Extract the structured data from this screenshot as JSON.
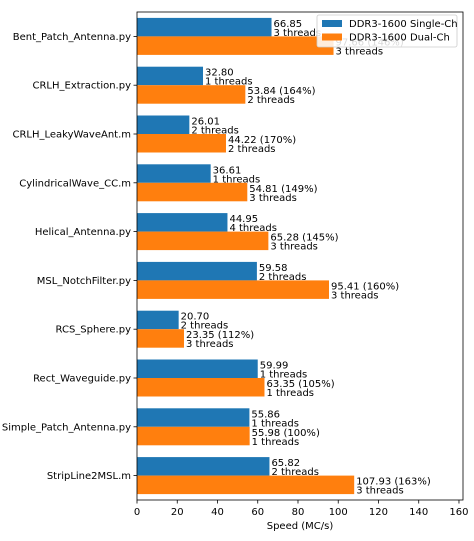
{
  "chart_data": {
    "type": "bar",
    "orientation": "horizontal",
    "title": "",
    "xlabel": "Speed (MC/s)",
    "ylabel": "",
    "xlim": [
      0,
      162
    ],
    "xticks": [
      0,
      20,
      40,
      60,
      80,
      100,
      120,
      140,
      160
    ],
    "grid": false,
    "legend_position": "top-right",
    "categories": [
      "Bent_Patch_Antenna.py",
      "CRLH_Extraction.py",
      "CRLH_LeakyWaveAnt.m",
      "CylindricalWave_CC.m",
      "Helical_Antenna.py",
      "MSL_NotchFilter.py",
      "RCS_Sphere.py",
      "Rect_Waveguide.py",
      "Simple_Patch_Antenna.py",
      "StripLine2MSL.m"
    ],
    "series": [
      {
        "name": "DDR3-1600 Single-Ch",
        "color": "#1f77b4",
        "values": [
          66.85,
          32.8,
          26.01,
          36.61,
          44.95,
          59.58,
          20.7,
          59.99,
          55.86,
          65.82
        ],
        "labels": [
          "66.85",
          "32.80",
          "26.01",
          "36.61",
          "44.95",
          "59.58",
          "20.70",
          "59.99",
          "55.86",
          "65.82"
        ],
        "threads": [
          "3 threads",
          "1 threads",
          "2 threads",
          "1 threads",
          "4 threads",
          "2 threads",
          "2 threads",
          "1 threads",
          "1 threads",
          "2 threads"
        ]
      },
      {
        "name": "DDR3-1600 Dual-Ch",
        "color": "#ff7f0e",
        "values": [
          97.66,
          53.84,
          44.22,
          54.81,
          65.28,
          95.41,
          23.35,
          63.35,
          55.98,
          107.93
        ],
        "labels": [
          "97.66 (146%)",
          "53.84 (164%)",
          "44.22 (170%)",
          "54.81 (149%)",
          "65.28 (145%)",
          "95.41 (160%)",
          "23.35 (112%)",
          "63.35 (105%)",
          "55.98 (100%)",
          "107.93 (163%)"
        ],
        "threads": [
          "3 threads",
          "2 threads",
          "2 threads",
          "3 threads",
          "3 threads",
          "3 threads",
          "3 threads",
          "1 threads",
          "1 threads",
          "3 threads"
        ]
      }
    ]
  }
}
